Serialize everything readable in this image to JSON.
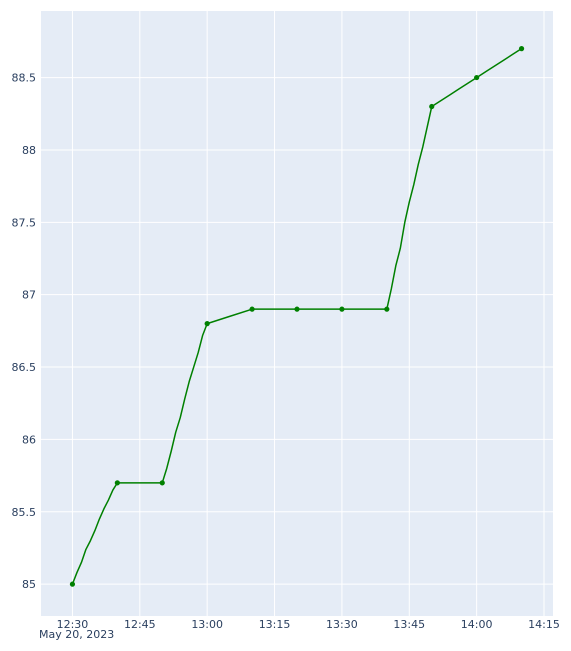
{
  "chart_data": {
    "type": "line",
    "title": "",
    "xlabel": "",
    "ylabel": "",
    "x_axis_type": "time",
    "x_date_label": "May 20, 2023",
    "x_tick_labels": [
      "12:30",
      "12:45",
      "13:00",
      "13:15",
      "13:30",
      "13:45",
      "14:00",
      "14:15"
    ],
    "x_tick_minutes": [
      750,
      765,
      780,
      795,
      810,
      825,
      840,
      855
    ],
    "x_range": [
      "12:23",
      "14:17"
    ],
    "y_range": [
      84.78,
      88.96
    ],
    "y_tick_labels": [
      "85",
      "85.5",
      "86",
      "86.5",
      "87",
      "87.5",
      "88",
      "88.5"
    ],
    "y_ticks": [
      85,
      85.5,
      86,
      86.5,
      87,
      87.5,
      88,
      88.5
    ],
    "grid": true,
    "legend": "none",
    "colors": {
      "plot_background": "#e5ecf6",
      "grid": "#ffffff",
      "line": "#008000",
      "tick_text": "#2a3f5f"
    },
    "series": [
      {
        "marker_times": [
          "12:30",
          "12:40",
          "12:50",
          "13:00",
          "13:10",
          "13:20",
          "13:30",
          "13:40",
          "13:50",
          "14:00",
          "14:10"
        ],
        "marker_values": [
          85.0,
          85.7,
          85.7,
          86.8,
          86.9,
          86.9,
          86.9,
          86.9,
          88.3,
          88.5,
          88.7
        ],
        "x": [
          "12:30",
          "12:31",
          "12:32",
          "12:33",
          "12:34",
          "12:35",
          "12:36",
          "12:37",
          "12:38",
          "12:39",
          "12:40",
          "12:41",
          "12:42",
          "12:43",
          "12:44",
          "12:45",
          "12:46",
          "12:47",
          "12:48",
          "12:49",
          "12:50",
          "12:51",
          "12:52",
          "12:53",
          "12:54",
          "12:55",
          "12:56",
          "12:57",
          "12:58",
          "12:59",
          "13:00",
          "13:05",
          "13:10",
          "13:15",
          "13:20",
          "13:25",
          "13:30",
          "13:35",
          "13:40",
          "13:41",
          "13:42",
          "13:43",
          "13:44",
          "13:45",
          "13:46",
          "13:47",
          "13:48",
          "13:49",
          "13:50",
          "13:52",
          "13:54",
          "13:56",
          "13:58",
          "14:00",
          "14:02",
          "14:04",
          "14:06",
          "14:08",
          "14:10"
        ],
        "y": [
          85.0,
          85.08,
          85.15,
          85.24,
          85.3,
          85.37,
          85.45,
          85.52,
          85.58,
          85.65,
          85.7,
          85.7,
          85.7,
          85.7,
          85.7,
          85.7,
          85.7,
          85.7,
          85.7,
          85.7,
          85.7,
          85.8,
          85.92,
          86.05,
          86.15,
          86.28,
          86.4,
          86.5,
          86.6,
          86.72,
          86.8,
          86.85,
          86.9,
          86.9,
          86.9,
          86.9,
          86.9,
          86.9,
          86.9,
          87.04,
          87.2,
          87.32,
          87.5,
          87.64,
          87.76,
          87.9,
          88.02,
          88.16,
          88.3,
          88.34,
          88.38,
          88.42,
          88.46,
          88.5,
          88.54,
          88.58,
          88.62,
          88.66,
          88.7
        ]
      }
    ]
  }
}
